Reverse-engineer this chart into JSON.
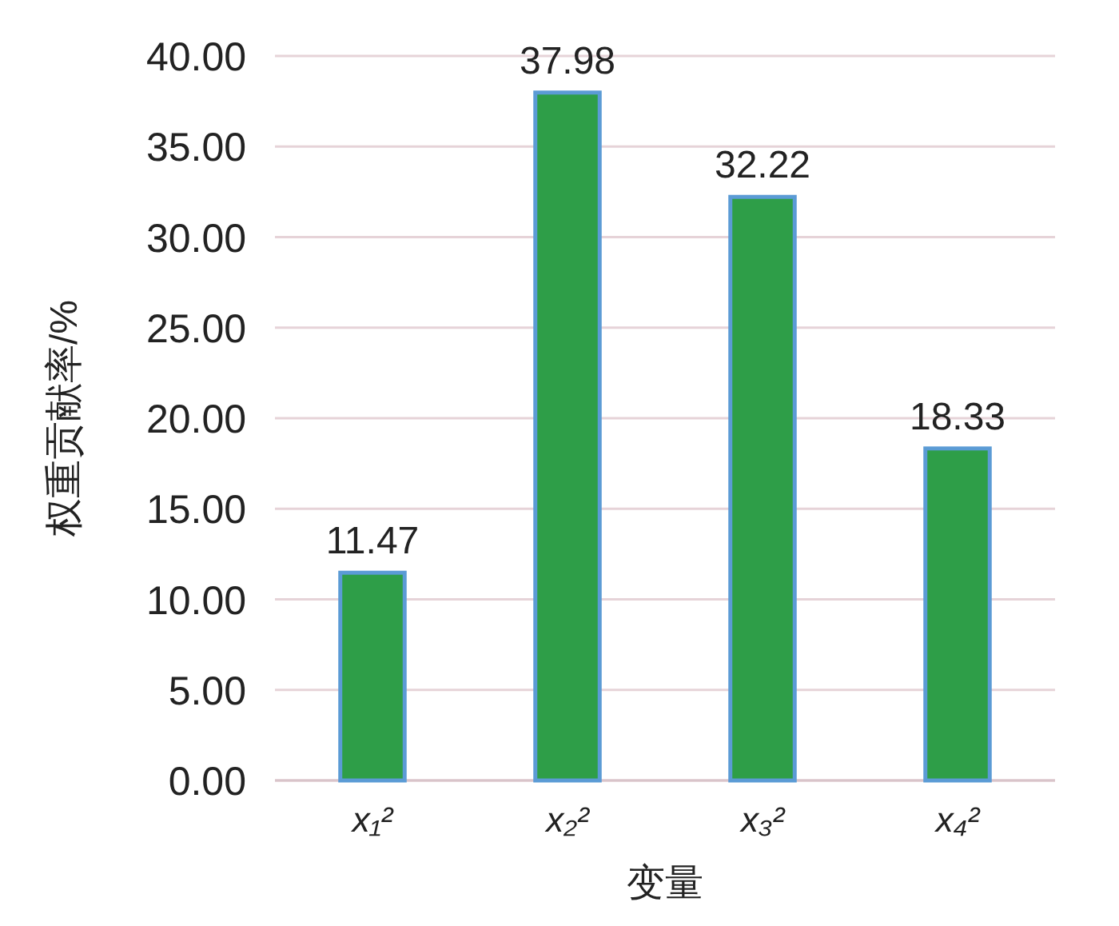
{
  "chart_data": {
    "type": "bar",
    "xlabel": "变量",
    "ylabel": "权重贡献率/%",
    "categories": [
      "x₁²",
      "x₂²",
      "x₃²",
      "x₄²"
    ],
    "values": [
      11.47,
      37.98,
      32.22,
      18.33
    ],
    "color": "#2e9e48",
    "ylim": [
      0,
      40
    ],
    "yticks": [
      {
        "value": 0,
        "label": "0.00"
      },
      {
        "value": 5,
        "label": "5.00"
      },
      {
        "value": 10,
        "label": "10.00"
      },
      {
        "value": 15,
        "label": "15.00"
      },
      {
        "value": 20,
        "label": "20.00"
      },
      {
        "value": 25,
        "label": "25.00"
      },
      {
        "value": 30,
        "label": "30.00"
      },
      {
        "value": 35,
        "label": "35.00"
      },
      {
        "value": 40,
        "label": "40.00"
      }
    ],
    "grid": "y",
    "data_labels": true
  }
}
